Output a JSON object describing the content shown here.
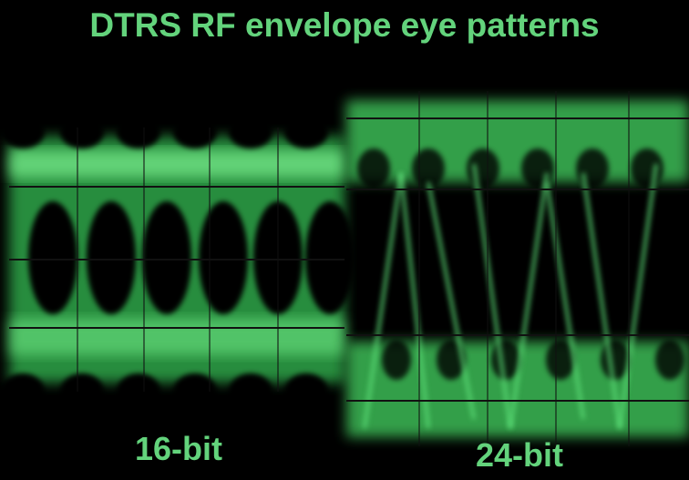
{
  "title": "DTRS RF envelope eye patterns",
  "panels": [
    {
      "label": "16-bit"
    },
    {
      "label": "24-bit"
    }
  ]
}
